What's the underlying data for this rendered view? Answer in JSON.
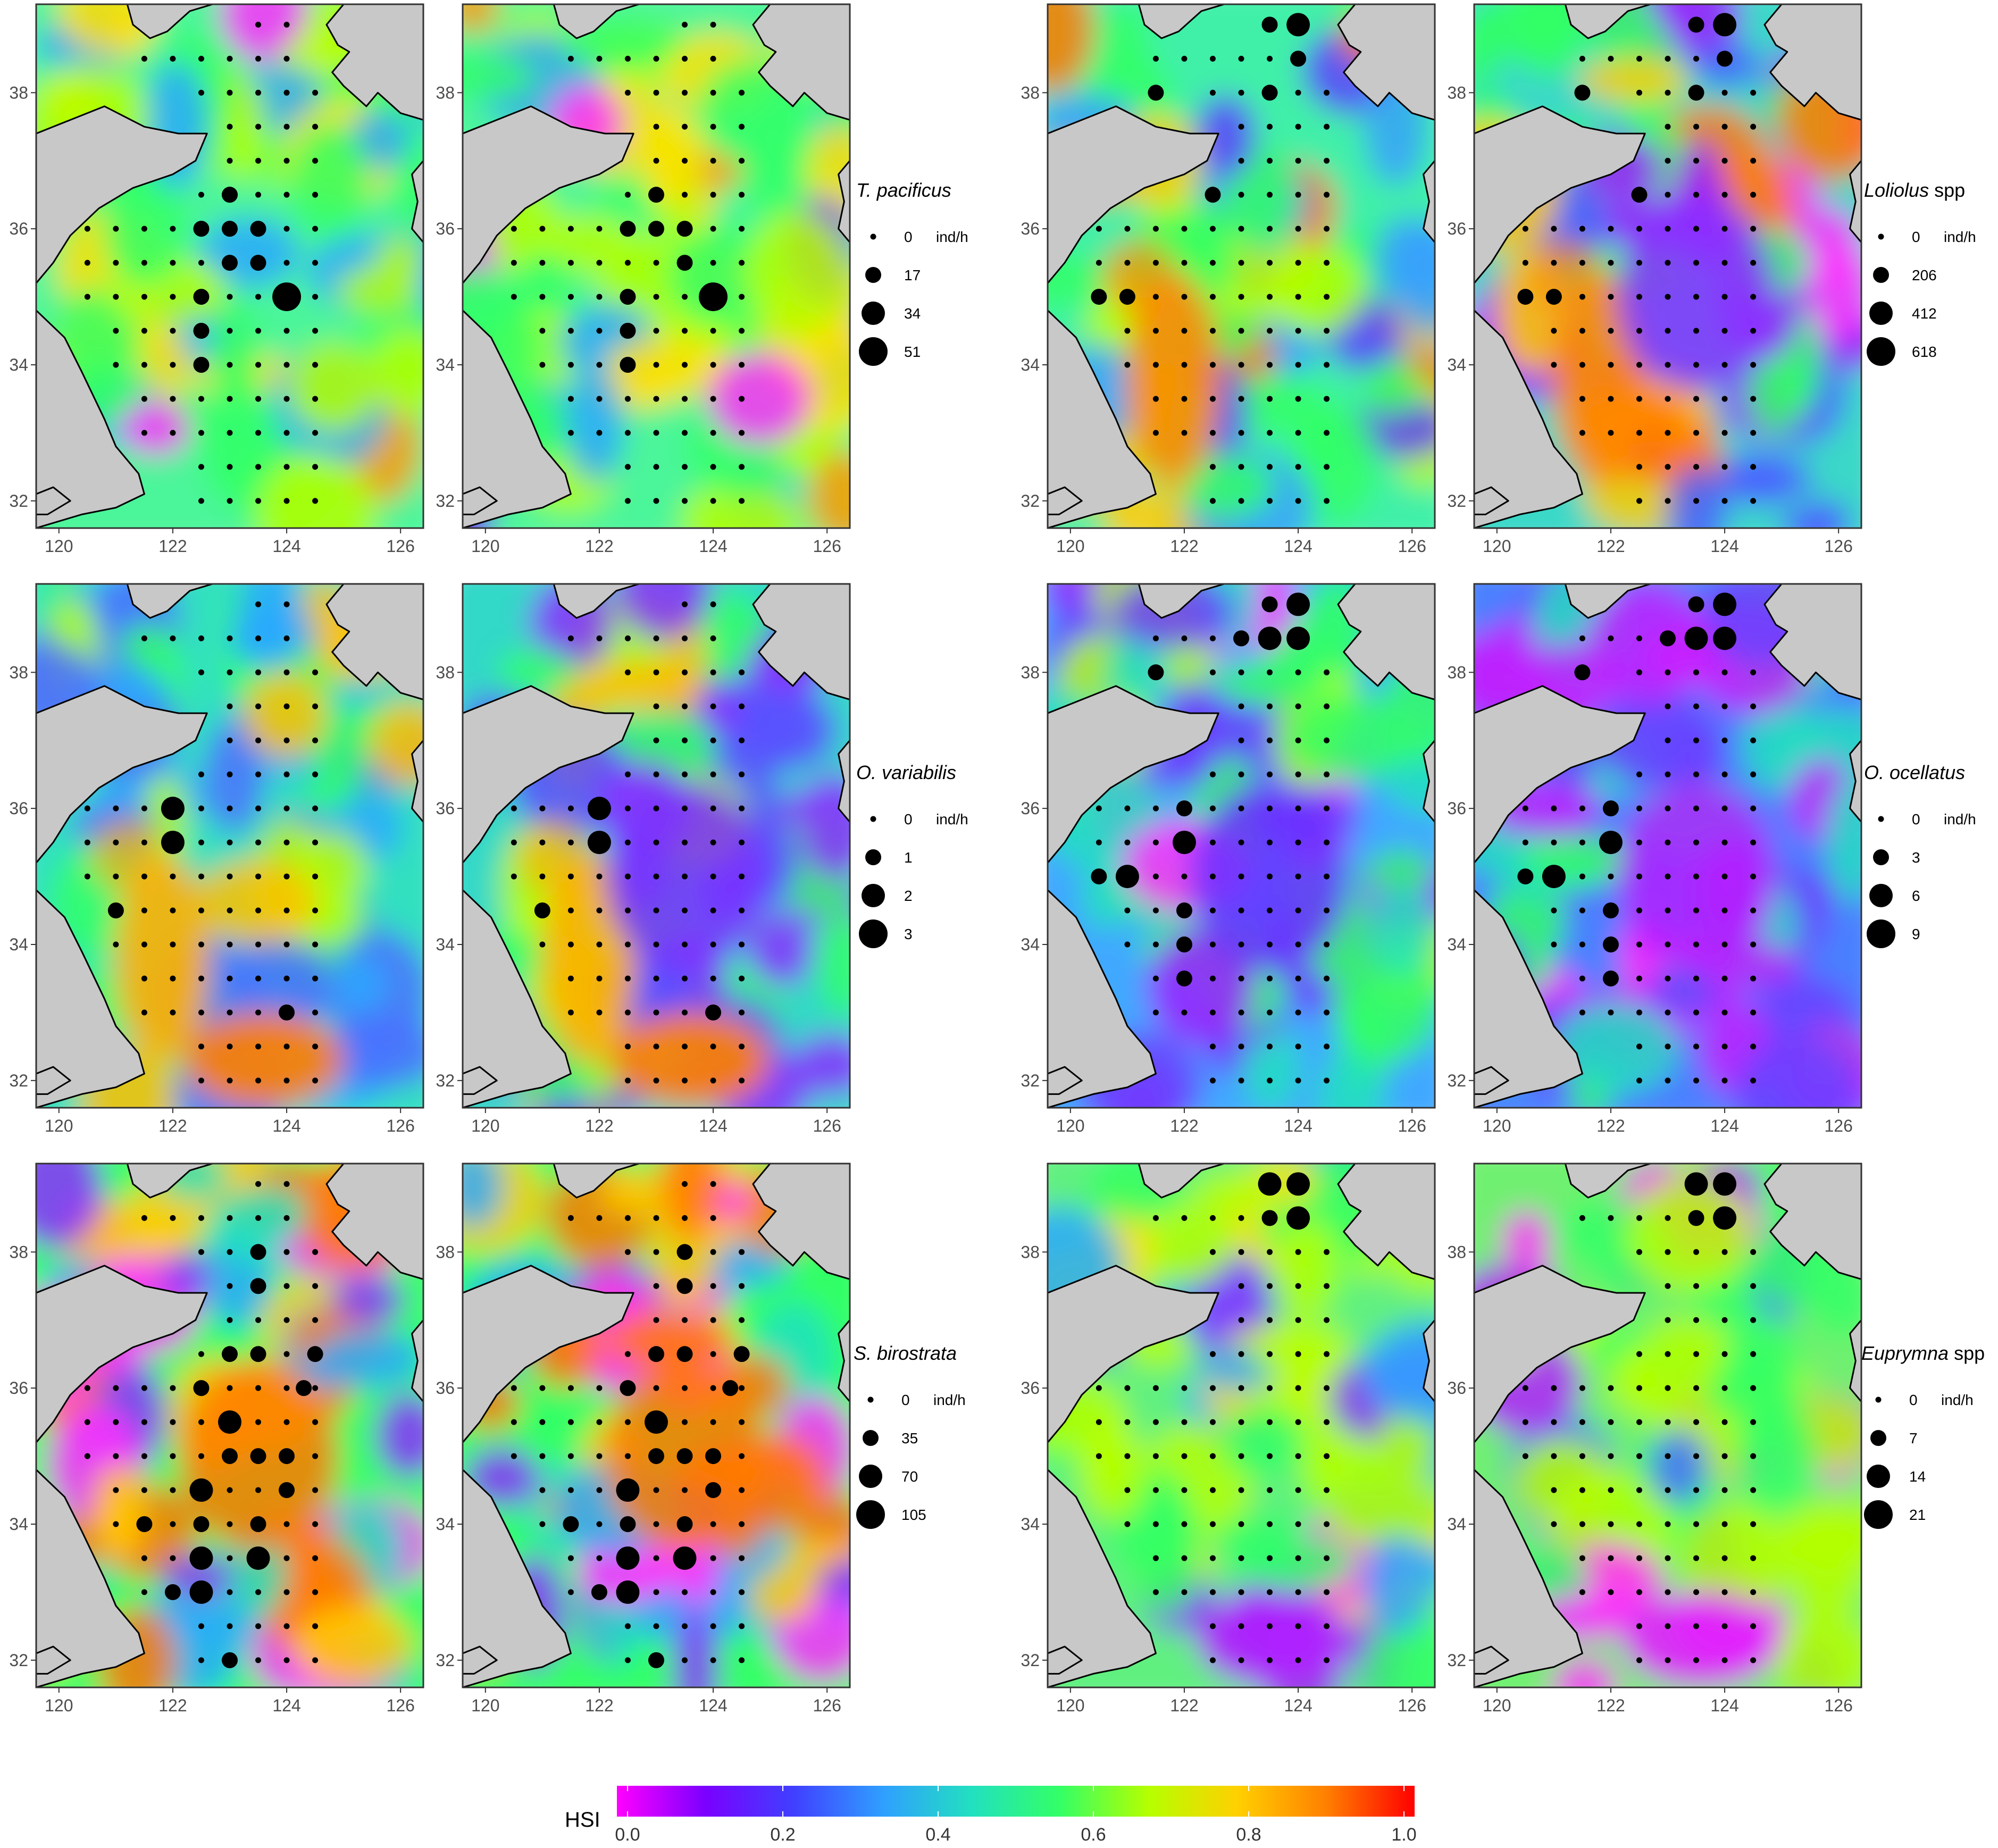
{
  "figure": {
    "axis_ticks": {
      "x": [
        "120",
        "122",
        "124",
        "126"
      ],
      "y": [
        "32",
        "34",
        "36",
        "38"
      ],
      "x_values": [
        120,
        122,
        124,
        126
      ],
      "y_values": [
        32,
        34,
        36,
        38
      ]
    },
    "extent": {
      "lon": [
        119.6,
        126.4
      ],
      "lat": [
        31.6,
        39.3
      ]
    },
    "colors": {
      "land": "#c8c8c8",
      "panel_border": "#333333",
      "dot": "#000000",
      "hsi_scale": [
        "#ff00ff",
        "#7a00ff",
        "#4040ff",
        "#2f9fff",
        "#22e0c0",
        "#33ff66",
        "#b5ff00",
        "#ffd000",
        "#ff8000",
        "#ff0000"
      ]
    },
    "colorbar": {
      "title": "HSI",
      "ticks": [
        "0.0",
        "0.2",
        "0.4",
        "0.6",
        "0.8",
        "1.0"
      ],
      "tick_values": [
        0.0,
        0.2,
        0.4,
        0.6,
        0.8,
        1.0
      ],
      "range": [
        0,
        1
      ]
    },
    "legends": [
      {
        "species_italic": "T. pacificus",
        "species_suffix": "",
        "unit": "ind/h",
        "values": [
          "0",
          "17",
          "34",
          "51"
        ]
      },
      {
        "species_italic": "Loliolus",
        "species_suffix": " spp",
        "unit": "ind/h",
        "values": [
          "0",
          "206",
          "412",
          "618"
        ]
      },
      {
        "species_italic": "O. variabilis",
        "species_suffix": "",
        "unit": "ind/h",
        "values": [
          "0",
          "1",
          "2",
          "3"
        ]
      },
      {
        "species_italic": "O. ocellatus",
        "species_suffix": "",
        "unit": "ind/h",
        "values": [
          "0",
          "3",
          "6",
          "9"
        ]
      },
      {
        "species_italic": "S. birostrata",
        "species_suffix": "",
        "unit": "ind/h",
        "values": [
          "0",
          "35",
          "70",
          "105"
        ]
      },
      {
        "species_italic": "Euprymna",
        "species_suffix": " spp",
        "unit": "ind/h",
        "values": [
          "0",
          "7",
          "14",
          "21"
        ]
      }
    ],
    "panels": [
      {
        "species": "T. pacificus",
        "hsi_pattern": "mixed-green",
        "large_catches": [
          [
            124,
            35,
            3
          ],
          [
            123,
            36.5,
            1
          ],
          [
            122.5,
            36,
            1
          ],
          [
            123.5,
            36,
            1
          ],
          [
            123,
            36,
            1
          ],
          [
            123,
            36.5,
            1
          ],
          [
            122.5,
            35,
            1
          ],
          [
            122.5,
            34.5,
            1
          ],
          [
            122.5,
            34,
            1
          ],
          [
            123,
            35.5,
            1
          ],
          [
            123.5,
            35.5,
            1
          ]
        ]
      },
      {
        "species": "T. pacificus",
        "hsi_pattern": "mixed-green",
        "large_catches": [
          [
            124,
            35,
            3
          ],
          [
            123,
            36.5,
            1
          ],
          [
            122.5,
            36,
            1
          ],
          [
            123.5,
            36,
            1
          ],
          [
            123,
            36,
            1
          ],
          [
            122.5,
            35,
            1
          ],
          [
            122.5,
            34.5,
            1
          ],
          [
            122.5,
            34,
            1
          ],
          [
            123.5,
            35.5,
            1
          ]
        ]
      },
      {
        "species": "Loliolus spp",
        "hsi_pattern": "west-orange",
        "large_catches": [
          [
            124,
            39,
            2
          ],
          [
            124,
            38.5,
            1
          ],
          [
            123.5,
            39,
            1
          ],
          [
            120.5,
            35,
            1
          ],
          [
            121,
            35,
            1
          ],
          [
            122.5,
            36.5,
            1
          ],
          [
            121.5,
            38,
            1
          ],
          [
            123.5,
            38,
            1
          ]
        ]
      },
      {
        "species": "Loliolus spp",
        "hsi_pattern": "west-orange-east-purple",
        "large_catches": [
          [
            124,
            39,
            2
          ],
          [
            124,
            38.5,
            1
          ],
          [
            123.5,
            39,
            1
          ],
          [
            120.5,
            35,
            1
          ],
          [
            121,
            35,
            1
          ],
          [
            122.5,
            36.5,
            1
          ],
          [
            121.5,
            38,
            1
          ],
          [
            123.5,
            38,
            1
          ]
        ]
      },
      {
        "species": "O. variabilis",
        "hsi_pattern": "coastal-yellow",
        "large_catches": [
          [
            122,
            36,
            2
          ],
          [
            122,
            35.5,
            2
          ],
          [
            121,
            34.5,
            1
          ],
          [
            124,
            33,
            1
          ]
        ]
      },
      {
        "species": "O. variabilis",
        "hsi_pattern": "coastal-yellow-center-purple",
        "large_catches": [
          [
            122,
            36,
            2
          ],
          [
            122,
            35.5,
            2
          ],
          [
            121,
            34.5,
            1
          ],
          [
            124,
            33,
            1
          ]
        ]
      },
      {
        "species": "O. ocellatus",
        "hsi_pattern": "center-purple",
        "large_catches": [
          [
            124,
            39,
            2
          ],
          [
            124,
            38.5,
            2
          ],
          [
            123.5,
            39,
            1
          ],
          [
            123.5,
            38.5,
            2
          ],
          [
            123,
            38.5,
            1
          ],
          [
            121.5,
            38,
            1
          ],
          [
            121,
            35,
            2
          ],
          [
            122,
            35.5,
            2
          ],
          [
            122,
            36,
            1
          ],
          [
            120.5,
            35,
            1
          ],
          [
            122,
            33.5,
            1
          ],
          [
            122,
            34,
            1
          ],
          [
            122,
            34.5,
            1
          ]
        ]
      },
      {
        "species": "O. ocellatus",
        "hsi_pattern": "center-magenta",
        "large_catches": [
          [
            124,
            39,
            2
          ],
          [
            124,
            38.5,
            2
          ],
          [
            123.5,
            39,
            1
          ],
          [
            123.5,
            38.5,
            2
          ],
          [
            123,
            38.5,
            1
          ],
          [
            121.5,
            38,
            1
          ],
          [
            121,
            35,
            2
          ],
          [
            122,
            35.5,
            2
          ],
          [
            122,
            36,
            1
          ],
          [
            120.5,
            35,
            1
          ],
          [
            122,
            33.5,
            1
          ],
          [
            122,
            34,
            1
          ],
          [
            122,
            34.5,
            1
          ]
        ]
      },
      {
        "species": "S. birostrata",
        "hsi_pattern": "center-orange",
        "large_catches": [
          [
            123,
            35.5,
            2
          ],
          [
            122.5,
            34.5,
            2
          ],
          [
            122.5,
            33.5,
            2
          ],
          [
            122.5,
            33,
            2
          ],
          [
            123.5,
            33.5,
            2
          ],
          [
            122.5,
            34,
            1
          ],
          [
            123.5,
            34,
            1
          ],
          [
            124,
            34.5,
            1
          ],
          [
            123,
            35,
            1
          ],
          [
            123.5,
            35,
            1
          ],
          [
            124,
            35,
            1
          ],
          [
            122.5,
            36,
            1
          ],
          [
            123,
            36.5,
            1
          ],
          [
            123.5,
            36.5,
            1
          ],
          [
            124.5,
            36.5,
            1
          ],
          [
            124.3,
            36,
            1
          ],
          [
            123.5,
            37.5,
            1
          ],
          [
            123.5,
            38,
            1
          ],
          [
            121.5,
            34,
            1
          ],
          [
            122,
            33,
            1
          ],
          [
            123,
            32,
            1
          ]
        ]
      },
      {
        "species": "S. birostrata",
        "hsi_pattern": "center-orange",
        "large_catches": [
          [
            123,
            35.5,
            2
          ],
          [
            122.5,
            34.5,
            2
          ],
          [
            122.5,
            33.5,
            2
          ],
          [
            122.5,
            33,
            2
          ],
          [
            123.5,
            33.5,
            2
          ],
          [
            122.5,
            34,
            1
          ],
          [
            123.5,
            34,
            1
          ],
          [
            124,
            34.5,
            1
          ],
          [
            123,
            35,
            1
          ],
          [
            123.5,
            35,
            1
          ],
          [
            124,
            35,
            1
          ],
          [
            122.5,
            36,
            1
          ],
          [
            123,
            36.5,
            1
          ],
          [
            123.5,
            36.5,
            1
          ],
          [
            124.5,
            36.5,
            1
          ],
          [
            124.3,
            36,
            1
          ],
          [
            123.5,
            37.5,
            1
          ],
          [
            123.5,
            38,
            1
          ],
          [
            121.5,
            34,
            1
          ],
          [
            122,
            33,
            1
          ],
          [
            123,
            32,
            1
          ]
        ]
      },
      {
        "species": "Euprymna spp",
        "hsi_pattern": "green-south-magenta",
        "large_catches": [
          [
            124,
            39,
            2
          ],
          [
            124,
            38.5,
            2
          ],
          [
            123.5,
            39,
            2
          ],
          [
            123.5,
            38.5,
            1
          ]
        ]
      },
      {
        "species": "Euprymna spp",
        "hsi_pattern": "green-south-magenta-strong",
        "large_catches": [
          [
            124,
            39,
            2
          ],
          [
            124,
            38.5,
            2
          ],
          [
            123.5,
            39,
            2
          ],
          [
            123.5,
            38.5,
            1
          ]
        ]
      }
    ]
  }
}
